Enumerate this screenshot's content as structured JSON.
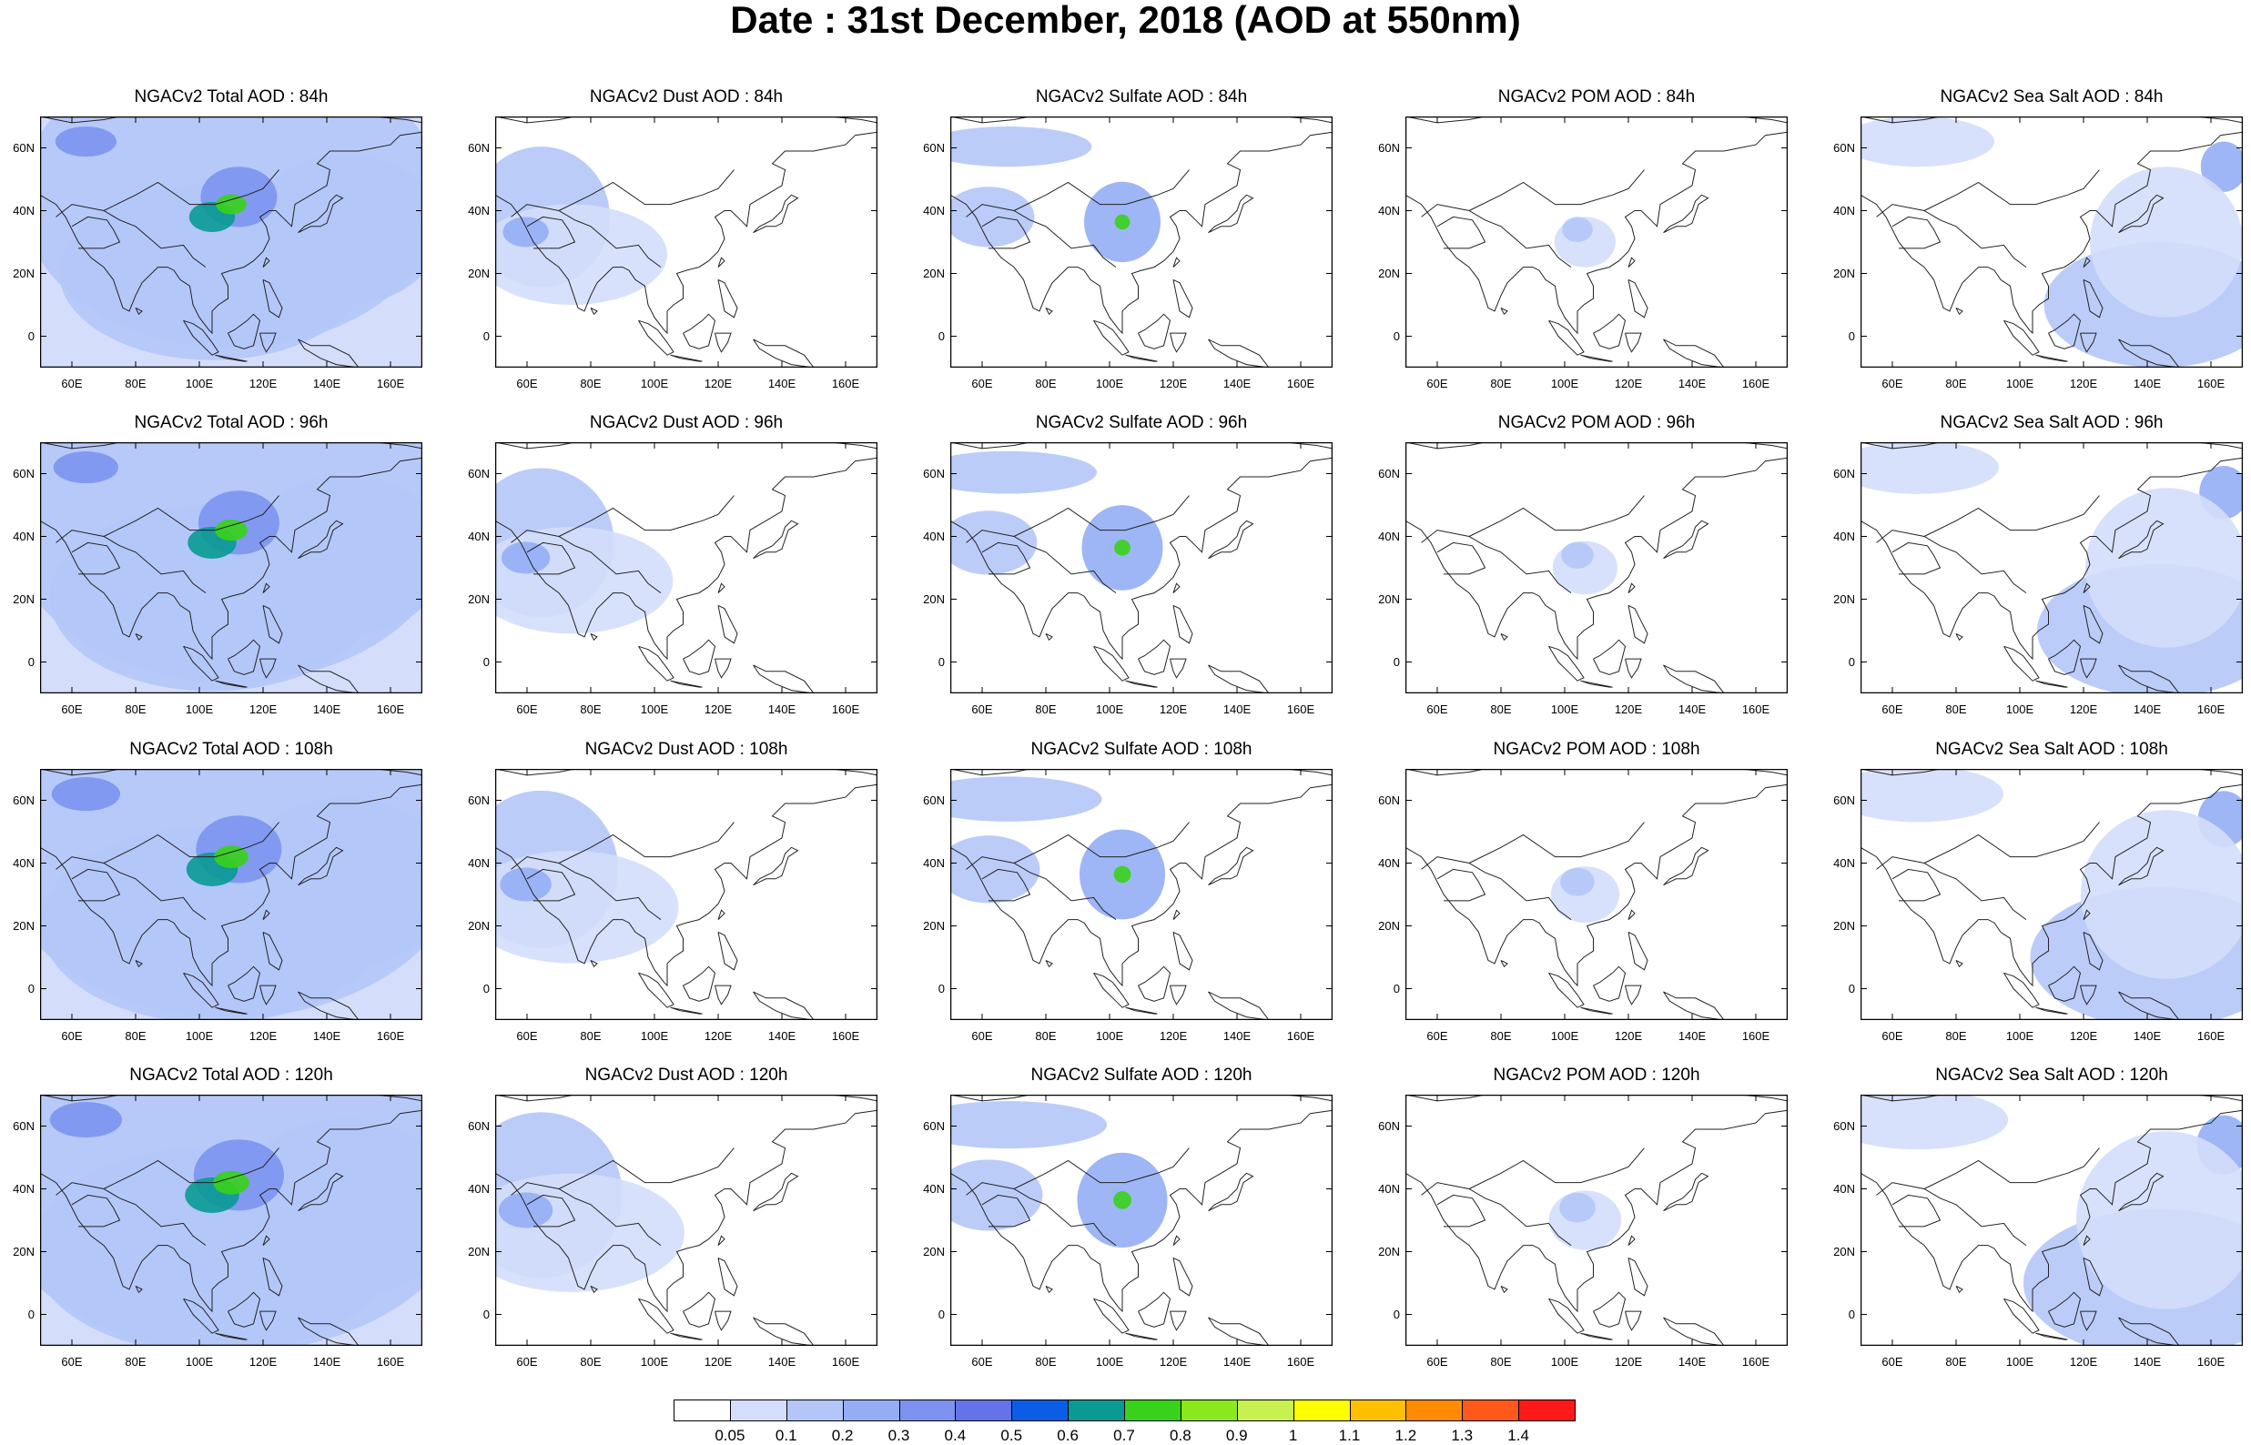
{
  "title": "Date : 31st December, 2018 (AOD at 550nm)",
  "lat_ticks": [
    "60N",
    "40N",
    "20N",
    "0"
  ],
  "lon_ticks": [
    "60E",
    "80E",
    "100E",
    "120E",
    "140E",
    "160E"
  ],
  "extent": {
    "lon_min": 50,
    "lon_max": 170,
    "lat_min": -10,
    "lat_max": 70
  },
  "panel_titles": [
    [
      "NGACv2 Total AOD : 84h",
      "NGACv2 Dust AOD : 84h",
      "NGACv2 Sulfate AOD : 84h",
      "NGACv2 POM AOD : 84h",
      "NGACv2 Sea Salt AOD : 84h"
    ],
    [
      "NGACv2 Total AOD : 96h",
      "NGACv2 Dust AOD : 96h",
      "NGACv2 Sulfate AOD : 96h",
      "NGACv2 POM AOD : 96h",
      "NGACv2 Sea Salt AOD : 96h"
    ],
    [
      "NGACv2 Total AOD : 108h",
      "NGACv2 Dust AOD : 108h",
      "NGACv2 Sulfate AOD : 108h",
      "NGACv2 POM AOD : 108h",
      "NGACv2 Sea Salt AOD : 108h"
    ],
    [
      "NGACv2 Total AOD : 120h",
      "NGACv2 Dust AOD : 120h",
      "NGACv2 Sulfate AOD : 120h",
      "NGACv2 POM AOD : 120h",
      "NGACv2 Sea Salt  AOD : 120h"
    ]
  ],
  "colorbar": {
    "labels": [
      "0.05",
      "0.1",
      "0.2",
      "0.3",
      "0.4",
      "0.5",
      "0.6",
      "0.7",
      "0.8",
      "0.9",
      "1",
      "1.1",
      "1.2",
      "1.3",
      "1.4"
    ],
    "colors": [
      "#ffffff",
      "#d4defb",
      "#b4c6f8",
      "#93aef5",
      "#7c93ef",
      "#6474e8",
      "#0b5de8",
      "#089a93",
      "#38d21a",
      "#8be81c",
      "#c8f050",
      "#ffff00",
      "#ffc000",
      "#ff8c00",
      "#ff5a1a",
      "#ff1a1a"
    ]
  },
  "species": {
    "total": {
      "blobs": [
        [
          0.5,
          0.32,
          0.55,
          0.6,
          2
        ],
        [
          0.45,
          0.62,
          0.4,
          0.35,
          2
        ],
        [
          0.8,
          0.45,
          0.25,
          0.3,
          2
        ],
        [
          0.52,
          0.32,
          0.1,
          0.12,
          4
        ],
        [
          0.45,
          0.4,
          0.06,
          0.06,
          7
        ],
        [
          0.5,
          0.35,
          0.04,
          0.04,
          8
        ],
        [
          0.12,
          0.1,
          0.08,
          0.06,
          4
        ]
      ]
    },
    "dust": {
      "blobs": [
        [
          0.12,
          0.4,
          0.18,
          0.28,
          2
        ],
        [
          0.2,
          0.55,
          0.25,
          0.2,
          1
        ],
        [
          0.08,
          0.46,
          0.06,
          0.06,
          3
        ]
      ]
    },
    "sulfate": {
      "blobs": [
        [
          0.15,
          0.12,
          0.22,
          0.08,
          2
        ],
        [
          0.45,
          0.42,
          0.1,
          0.16,
          3
        ],
        [
          0.1,
          0.4,
          0.12,
          0.12,
          2
        ],
        [
          0.45,
          0.42,
          0.02,
          0.03,
          8
        ]
      ]
    },
    "pom": {
      "blobs": [
        [
          0.47,
          0.5,
          0.08,
          0.1,
          1
        ],
        [
          0.45,
          0.45,
          0.04,
          0.05,
          2
        ]
      ]
    },
    "seasalt": {
      "blobs": [
        [
          0.78,
          0.75,
          0.3,
          0.25,
          2
        ],
        [
          0.15,
          0.1,
          0.2,
          0.1,
          1
        ],
        [
          0.95,
          0.2,
          0.06,
          0.1,
          3
        ],
        [
          0.8,
          0.5,
          0.2,
          0.3,
          1
        ]
      ]
    }
  },
  "species_order": [
    "total",
    "dust",
    "sulfate",
    "pom",
    "seasalt"
  ]
}
